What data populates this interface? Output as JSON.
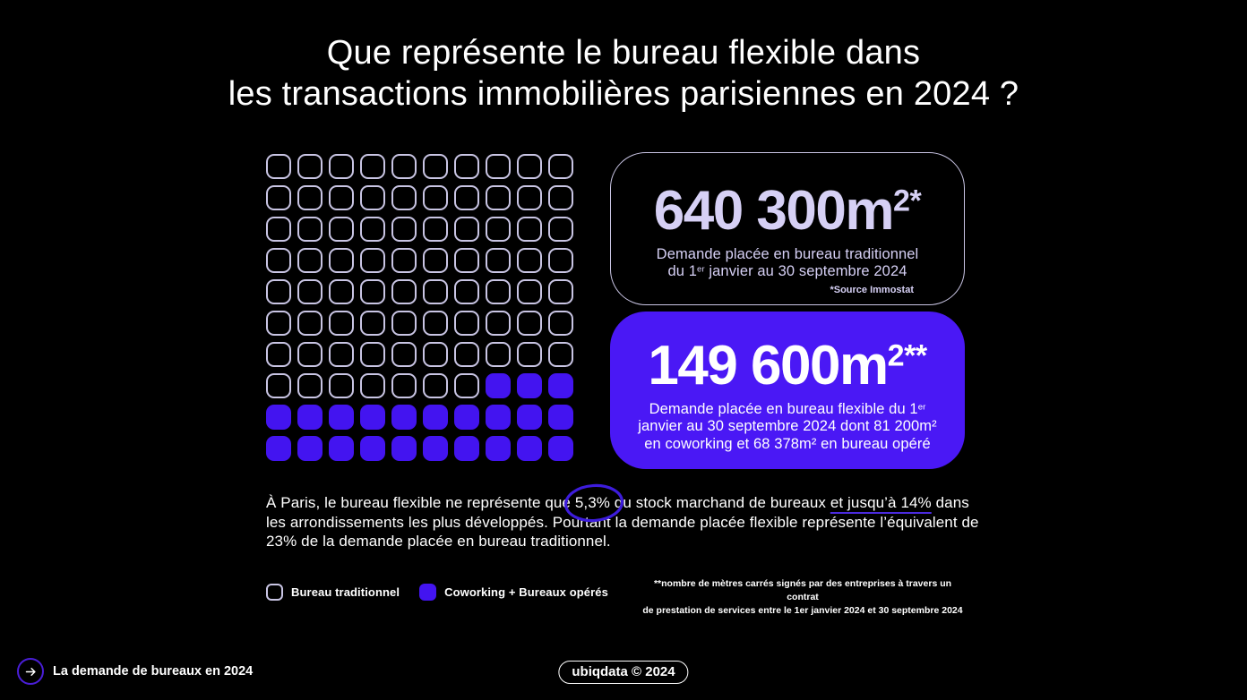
{
  "title": {
    "line1": "Que représente le bureau flexible dans",
    "line2": "les transactions immobilières parisiennes en 2024 ?"
  },
  "waffle": {
    "total": 100,
    "filled": 23,
    "columns": 10
  },
  "card_traditional": {
    "value": "640 300m",
    "value_sup": "2*",
    "desc_line1": "Demande placée en bureau traditionnel",
    "desc_line2_pre": "du 1",
    "desc_line2_sup": "er",
    "desc_line2_post": " janvier au 30 septembre 2024",
    "source": "*Source Immostat"
  },
  "card_flexible": {
    "value": "149 600m",
    "value_sup": "2**",
    "desc_line1_pre": "Demande placée en bureau flexible du 1",
    "desc_line1_sup": "er",
    "desc_line2": "janvier au 30 septembre 2024 dont 81 200m² ",
    "desc_line3": "en coworking et 68 378m² en bureau opéré"
  },
  "paragraph": {
    "part1": "À Paris, le bureau flexible ne représente que ",
    "circled": "5,3%",
    "part2": " du stock marchand de bureaux ",
    "underlined": "et jusqu’à 14%",
    "part3": " dans les arrondissements les plus développés. Pourtant la demande placée flexible représente l’équivalent de 23% de la demande placée en bureau traditionnel."
  },
  "legend": {
    "traditional": "Bureau traditionnel",
    "flexible": "Coworking + Bureaux opérés"
  },
  "footnote": {
    "line1": "**nombre de mètres carrés signés par des entreprises à travers un contrat",
    "line2": "de prestation de services entre le 1er janvier 2024 et 30 septembre 2024"
  },
  "footer": {
    "label": "La demande de bureaux en 2024",
    "credit": "ubiqdata © 2024"
  },
  "colors": {
    "background": "#000000",
    "purple": "#4314F0",
    "purple_card": "#4A18F5",
    "outline": "#C9C5E4",
    "lavender_text": "#D6D0F5",
    "underline": "#4B2AE0",
    "annotation": "#3D1CDC",
    "circle_border": "#4A1ED8"
  },
  "chart_data": {
    "type": "waffle",
    "title": "Que représente le bureau flexible dans les transactions immobilières parisiennes en 2024 ?",
    "total_squares": 100,
    "categories": [
      "Bureau traditionnel",
      "Coworking + Bureaux opérés"
    ],
    "values": [
      77,
      23
    ],
    "legend_position": "bottom-left",
    "annotations": {
      "demande_placee_bureau_traditionnel_m2": "640 300",
      "demande_placee_bureau_flexible_m2": "149 600",
      "dont_coworking_m2": "81 200",
      "dont_bureau_opere_m2": "68 378",
      "part_stock_marchand_bureaux": "5,3%",
      "part_arrondissements_developpes": "14%",
      "part_demande_flexible_vs_traditionnel": "23%",
      "periode": "1er janvier au 30 septembre 2024",
      "source": "*Source Immostat"
    }
  }
}
